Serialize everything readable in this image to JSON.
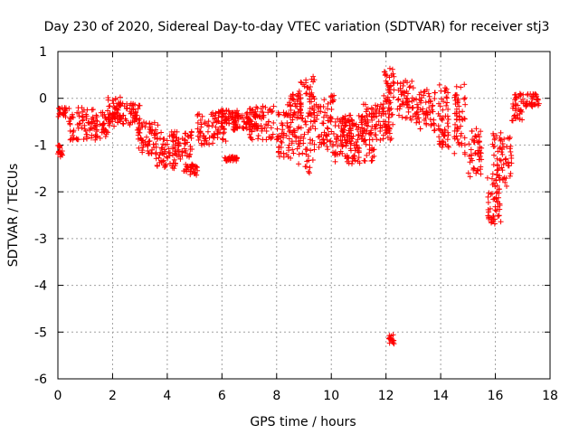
{
  "chart_data": {
    "type": "scatter",
    "title": "Day 230 of 2020, Sidereal Day-to-day VTEC variation (SDTVAR) for receiver stj3",
    "xlabel": "GPS time / hours",
    "ylabel": "SDTVAR / TECUs",
    "xlim": [
      0,
      18
    ],
    "ylim": [
      -6,
      1
    ],
    "xticks": [
      "0",
      "2",
      "4",
      "6",
      "8",
      "10",
      "12",
      "14",
      "16",
      "18"
    ],
    "yticks": [
      "1",
      "0",
      "-1",
      "-2",
      "-3",
      "-4",
      "-5",
      "-6"
    ],
    "grid": true,
    "marker": "+",
    "color": "#ff0000",
    "series": [
      {
        "name": "SDTVAR",
        "clusters": [
          {
            "x": [
              0.0,
              0.2
            ],
            "y": [
              -1.25,
              -1.0
            ]
          },
          {
            "x": [
              0.0,
              0.3
            ],
            "y": [
              -0.4,
              -0.2
            ]
          },
          {
            "x": [
              0.4,
              1.3
            ],
            "y": [
              -0.9,
              -0.2
            ]
          },
          {
            "x": [
              1.3,
              1.9
            ],
            "y": [
              -0.9,
              -0.3
            ]
          },
          {
            "x": [
              1.8,
              2.3
            ],
            "y": [
              -0.5,
              0.08
            ]
          },
          {
            "x": [
              2.0,
              3.0
            ],
            "y": [
              -0.6,
              -0.1
            ]
          },
          {
            "x": [
              2.9,
              3.7
            ],
            "y": [
              -1.2,
              -0.5
            ]
          },
          {
            "x": [
              3.5,
              4.4
            ],
            "y": [
              -1.5,
              -0.7
            ]
          },
          {
            "x": [
              4.2,
              4.9
            ],
            "y": [
              -1.3,
              -0.7
            ]
          },
          {
            "x": [
              4.6,
              5.1
            ],
            "y": [
              -1.65,
              -1.4
            ]
          },
          {
            "x": [
              5.1,
              6.2
            ],
            "y": [
              -1.0,
              -0.3
            ]
          },
          {
            "x": [
              5.8,
              6.6
            ],
            "y": [
              -0.6,
              -0.25
            ]
          },
          {
            "x": [
              6.1,
              6.6
            ],
            "y": [
              -1.35,
              -1.25
            ]
          },
          {
            "x": [
              6.4,
              7.3
            ],
            "y": [
              -0.7,
              -0.3
            ]
          },
          {
            "x": [
              7.0,
              7.9
            ],
            "y": [
              -0.9,
              -0.15
            ]
          },
          {
            "x": [
              8.0,
              8.8
            ],
            "y": [
              -1.3,
              -0.3
            ]
          },
          {
            "x": [
              8.3,
              8.9
            ],
            "y": [
              -0.4,
              0.1
            ]
          },
          {
            "x": [
              8.8,
              9.4
            ],
            "y": [
              -1.6,
              0.5
            ]
          },
          {
            "x": [
              9.3,
              10.1
            ],
            "y": [
              -1.1,
              0.1
            ]
          },
          {
            "x": [
              10.0,
              11.0
            ],
            "y": [
              -1.4,
              -0.4
            ]
          },
          {
            "x": [
              10.4,
              11.6
            ],
            "y": [
              -1.4,
              -0.3
            ]
          },
          {
            "x": [
              11.1,
              12.2
            ],
            "y": [
              -0.9,
              -0.1
            ]
          },
          {
            "x": [
              11.9,
              12.3
            ],
            "y": [
              -0.7,
              0.7
            ]
          },
          {
            "x": [
              12.1,
              12.3
            ],
            "y": [
              -5.25,
              -5.05
            ]
          },
          {
            "x": [
              12.4,
              13.0
            ],
            "y": [
              -0.5,
              0.4
            ]
          },
          {
            "x": [
              13.0,
              13.8
            ],
            "y": [
              -0.7,
              0.2
            ]
          },
          {
            "x": [
              13.9,
              14.3
            ],
            "y": [
              -1.1,
              0.3
            ]
          },
          {
            "x": [
              14.5,
              14.9
            ],
            "y": [
              -1.2,
              0.3
            ]
          },
          {
            "x": [
              15.0,
              15.5
            ],
            "y": [
              -1.7,
              -0.6
            ]
          },
          {
            "x": [
              15.7,
              16.2
            ],
            "y": [
              -2.7,
              -1.6
            ]
          },
          {
            "x": [
              15.9,
              16.6
            ],
            "y": [
              -1.9,
              -0.7
            ]
          },
          {
            "x": [
              16.6,
              17.0
            ],
            "y": [
              -0.5,
              0.1
            ]
          },
          {
            "x": [
              17.0,
              17.6
            ],
            "y": [
              -0.2,
              0.1
            ]
          }
        ]
      }
    ]
  }
}
